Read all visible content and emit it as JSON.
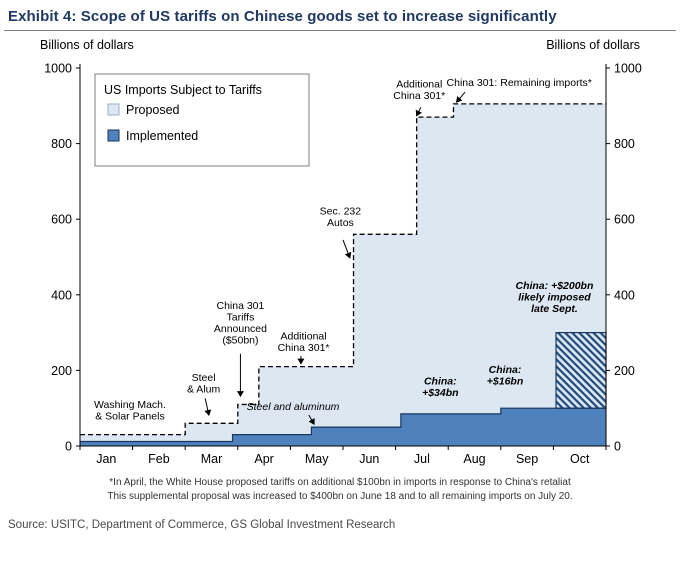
{
  "title": "Exhibit 4: Scope of US tariffs on Chinese goods set to increase significantly",
  "left_axis_caption": "Billions of dollars",
  "right_axis_caption": "Billions of dollars",
  "footnote": {
    "line1": "*In April, the White House proposed tariffs on additional $100bn in imports in response to China's retaliat",
    "line2": "This supplemental proposal was increased to $400bn on June 18 and to all remaining imports on July 20."
  },
  "source": "Source: USITC, Department of Commerce, GS Global Investment Research",
  "colors": {
    "title": "#1f3864",
    "proposed_fill": "#dde7f2",
    "implemented_fill": "#4f81bd",
    "implemented_line": "#17375e",
    "dashed_line": "#000000",
    "hatch_stripe": "#1f497d",
    "axis": "#000000"
  },
  "chart_data": {
    "type": "area",
    "subtype": "step",
    "legend_title": "US Imports Subject to Tariffs",
    "legend_position": "top-left",
    "x_categories": [
      "Jan",
      "Feb",
      "Mar",
      "Apr",
      "May",
      "Jun",
      "Jul",
      "Aug",
      "Sep",
      "Oct"
    ],
    "xlim": [
      0,
      10
    ],
    "ylim": [
      0,
      1000
    ],
    "yticks": [
      0,
      200,
      400,
      600,
      800,
      1000
    ],
    "unit": "Billions of dollars",
    "series": [
      {
        "name": "Proposed",
        "style": "dashed-outline",
        "fill": "#dde7f2",
        "steps": [
          {
            "x": 0,
            "value": 30
          },
          {
            "x": 2.0,
            "value": 60
          },
          {
            "x": 3.0,
            "value": 110
          },
          {
            "x": 3.4,
            "value": 210
          },
          {
            "x": 5.2,
            "value": 560
          },
          {
            "x": 6.4,
            "value": 870
          },
          {
            "x": 7.1,
            "value": 905
          }
        ],
        "x_end": 10
      },
      {
        "name": "Implemented",
        "style": "solid-outline",
        "fill": "#4f81bd",
        "steps": [
          {
            "x": 0,
            "value": 12
          },
          {
            "x": 2.9,
            "value": 30
          },
          {
            "x": 4.4,
            "value": 50
          },
          {
            "x": 6.1,
            "value": 85
          },
          {
            "x": 8.0,
            "value": 100
          }
        ],
        "x_end": 10
      }
    ],
    "likely_block": {
      "x_start": 9.05,
      "x_end": 10,
      "value_bottom": 100,
      "value_top": 300,
      "meaning": "China: +$200bn likely imposed late Sept."
    },
    "annotations": [
      {
        "name": "washing-solar",
        "lines": [
          "Washing Mach.",
          "& Solar Panels"
        ],
        "x": 0.95,
        "value": 100,
        "italic": false,
        "bold": false
      },
      {
        "name": "steel-alum",
        "lines": [
          "Steel",
          "& Alum"
        ],
        "x": 2.35,
        "value": 172,
        "italic": false,
        "bold": false,
        "arrow": {
          "x1": 2.38,
          "v1": 126,
          "x2": 2.45,
          "v2": 82
        }
      },
      {
        "name": "china-301-announced",
        "lines": [
          "China 301",
          "Tariffs",
          "Announced",
          "($50bn)"
        ],
        "x": 3.05,
        "value": 362,
        "italic": false,
        "bold": false,
        "arrow": {
          "x1": 3.05,
          "v1": 244,
          "x2": 3.05,
          "v2": 132
        }
      },
      {
        "name": "additional-china-301-first",
        "lines": [
          "Additional",
          "China 301*"
        ],
        "x": 4.25,
        "value": 282,
        "italic": false,
        "bold": false,
        "arrow": {
          "x1": 4.2,
          "v1": 238,
          "x2": 4.2,
          "v2": 218
        }
      },
      {
        "name": "steel-and-aluminum",
        "lines": [
          "Steel and aluminum"
        ],
        "x": 4.05,
        "value": 95,
        "italic": true,
        "bold": false,
        "arrow": {
          "x1": 4.35,
          "v1": 82,
          "x2": 4.45,
          "v2": 58
        }
      },
      {
        "name": "sec-232-autos",
        "lines": [
          "Sec. 232",
          "Autos"
        ],
        "x": 4.95,
        "value": 612,
        "italic": false,
        "bold": false,
        "arrow": {
          "x1": 5.0,
          "v1": 545,
          "x2": 5.13,
          "v2": 498
        }
      },
      {
        "name": "additional-china-301-second",
        "lines": [
          "Additional",
          "China 301*"
        ],
        "x": 6.45,
        "value": 948,
        "italic": false,
        "bold": false,
        "arrow": {
          "x1": 6.48,
          "v1": 896,
          "x2": 6.4,
          "v2": 874
        }
      },
      {
        "name": "china-301-remaining",
        "lines": [
          "China 301: Remaining imports*"
        ],
        "x": 8.35,
        "value": 952,
        "italic": false,
        "bold": false,
        "arrow": {
          "x1": 7.32,
          "v1": 936,
          "x2": 7.16,
          "v2": 910
        }
      },
      {
        "name": "china-34bn",
        "lines": [
          "China:",
          "+$34bn"
        ],
        "x": 6.85,
        "value": 163,
        "italic": true,
        "bold": true
      },
      {
        "name": "china-16bn",
        "lines": [
          "China:",
          "+$16bn"
        ],
        "x": 8.08,
        "value": 193,
        "italic": true,
        "bold": true
      },
      {
        "name": "china-200bn",
        "lines": [
          "China: +$200bn",
          "likely imposed",
          "late Sept."
        ],
        "x": 9.02,
        "value": 415,
        "italic": true,
        "bold": true
      }
    ]
  }
}
